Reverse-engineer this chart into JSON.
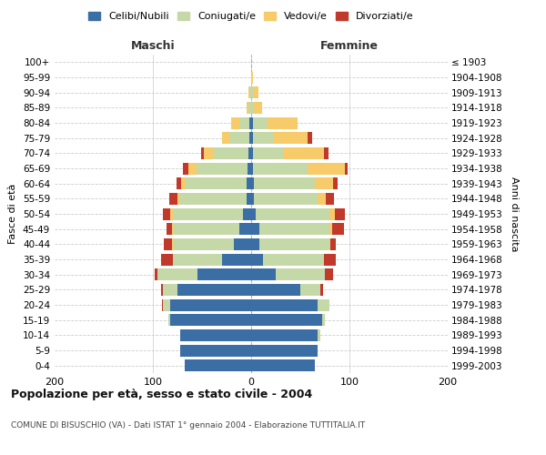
{
  "age_groups": [
    "0-4",
    "5-9",
    "10-14",
    "15-19",
    "20-24",
    "25-29",
    "30-34",
    "35-39",
    "40-44",
    "45-49",
    "50-54",
    "55-59",
    "60-64",
    "65-69",
    "70-74",
    "75-79",
    "80-84",
    "85-89",
    "90-94",
    "95-99",
    "100+"
  ],
  "birth_years": [
    "1999-2003",
    "1994-1998",
    "1989-1993",
    "1984-1988",
    "1979-1983",
    "1974-1978",
    "1969-1973",
    "1964-1968",
    "1959-1963",
    "1954-1958",
    "1949-1953",
    "1944-1948",
    "1939-1943",
    "1934-1938",
    "1929-1933",
    "1924-1928",
    "1919-1923",
    "1914-1918",
    "1909-1913",
    "1904-1908",
    "≤ 1903"
  ],
  "maschi": {
    "celibi": [
      68,
      72,
      72,
      82,
      82,
      75,
      55,
      30,
      18,
      12,
      8,
      5,
      5,
      4,
      3,
      2,
      2,
      0,
      0,
      0,
      0
    ],
    "coniugati": [
      0,
      0,
      0,
      2,
      8,
      15,
      40,
      50,
      62,
      68,
      72,
      68,
      62,
      52,
      35,
      20,
      10,
      3,
      2,
      0,
      0
    ],
    "vedovi": [
      0,
      0,
      0,
      0,
      0,
      0,
      0,
      0,
      1,
      1,
      2,
      2,
      4,
      8,
      10,
      8,
      8,
      2,
      1,
      0,
      0
    ],
    "divorziati": [
      0,
      0,
      0,
      0,
      1,
      2,
      3,
      12,
      8,
      5,
      8,
      8,
      5,
      5,
      3,
      0,
      0,
      0,
      0,
      0,
      0
    ]
  },
  "femmine": {
    "nubili": [
      65,
      68,
      68,
      72,
      68,
      50,
      25,
      12,
      8,
      8,
      5,
      3,
      3,
      2,
      2,
      2,
      2,
      0,
      0,
      0,
      0
    ],
    "coniugate": [
      0,
      0,
      2,
      3,
      12,
      20,
      50,
      62,
      72,
      72,
      75,
      65,
      62,
      55,
      30,
      20,
      15,
      3,
      2,
      0,
      0
    ],
    "vedove": [
      0,
      0,
      0,
      0,
      0,
      0,
      0,
      0,
      1,
      2,
      5,
      8,
      18,
      38,
      42,
      35,
      30,
      8,
      5,
      2,
      0
    ],
    "divorziate": [
      0,
      0,
      0,
      0,
      0,
      3,
      8,
      12,
      5,
      12,
      10,
      8,
      5,
      3,
      5,
      5,
      0,
      0,
      0,
      0,
      0
    ]
  },
  "colors": {
    "celibi": "#3A6EA5",
    "coniugati": "#C5D8A8",
    "vedovi": "#F7CB6A",
    "divorziati": "#C0392B"
  },
  "title": "Popolazione per età, sesso e stato civile - 2004",
  "subtitle": "COMUNE DI BISUSCHIO (VA) - Dati ISTAT 1° gennaio 2004 - Elaborazione TUTTITALIA.IT",
  "ylabel_left": "Fasce di età",
  "ylabel_right": "Anni di nascita",
  "xlabel_maschi": "Maschi",
  "xlabel_femmine": "Femmine",
  "xlim": 200,
  "bg_color": "#ffffff",
  "grid_color": "#cccccc",
  "legend_labels": [
    "Celibi/Nubili",
    "Coniugati/e",
    "Vedovi/e",
    "Divorziati/e"
  ]
}
